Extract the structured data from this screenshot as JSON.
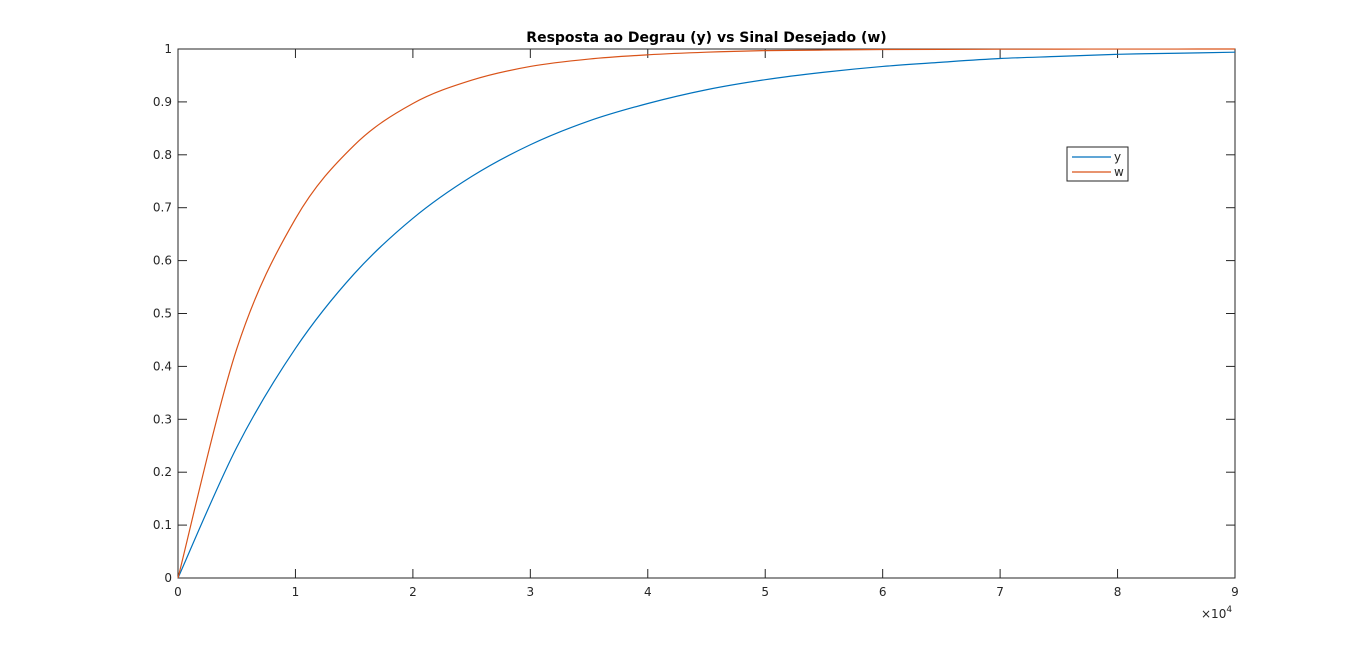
{
  "chart_data": {
    "type": "line",
    "title": "Resposta ao Degrau (y) vs Sinal Desejado (w)",
    "xlabel": "",
    "ylabel": "",
    "x_exponent_label": "×10",
    "x_exponent_power": "4",
    "xlim": [
      0,
      9
    ],
    "ylim": [
      0,
      1
    ],
    "x_ticks": [
      "0",
      "1",
      "2",
      "3",
      "4",
      "5",
      "6",
      "7",
      "8",
      "9"
    ],
    "y_ticks": [
      "0",
      "0.1",
      "0.2",
      "0.3",
      "0.4",
      "0.5",
      "0.6",
      "0.7",
      "0.8",
      "0.9",
      "1"
    ],
    "grid": false,
    "legend_position": "top-right",
    "x": [
      0,
      0.5,
      1,
      1.5,
      2,
      2.5,
      3,
      3.5,
      4,
      4.5,
      5,
      5.5,
      6,
      6.5,
      7,
      7.5,
      8,
      8.5,
      9
    ],
    "series": [
      {
        "name": "y",
        "color": "#0072BD",
        "values": [
          0,
          0.247,
          0.434,
          0.575,
          0.68,
          0.759,
          0.819,
          0.864,
          0.897,
          0.923,
          0.942,
          0.956,
          0.967,
          0.975,
          0.982,
          0.986,
          0.99,
          0.992,
          0.994
        ]
      },
      {
        "name": "w",
        "color": "#D95319",
        "values": [
          0,
          0.433,
          0.679,
          0.818,
          0.897,
          0.941,
          0.967,
          0.981,
          0.989,
          0.994,
          0.997,
          0.998,
          0.999,
          0.9993,
          0.9996,
          0.9998,
          0.9999,
          0.9999,
          1.0
        ]
      }
    ]
  }
}
